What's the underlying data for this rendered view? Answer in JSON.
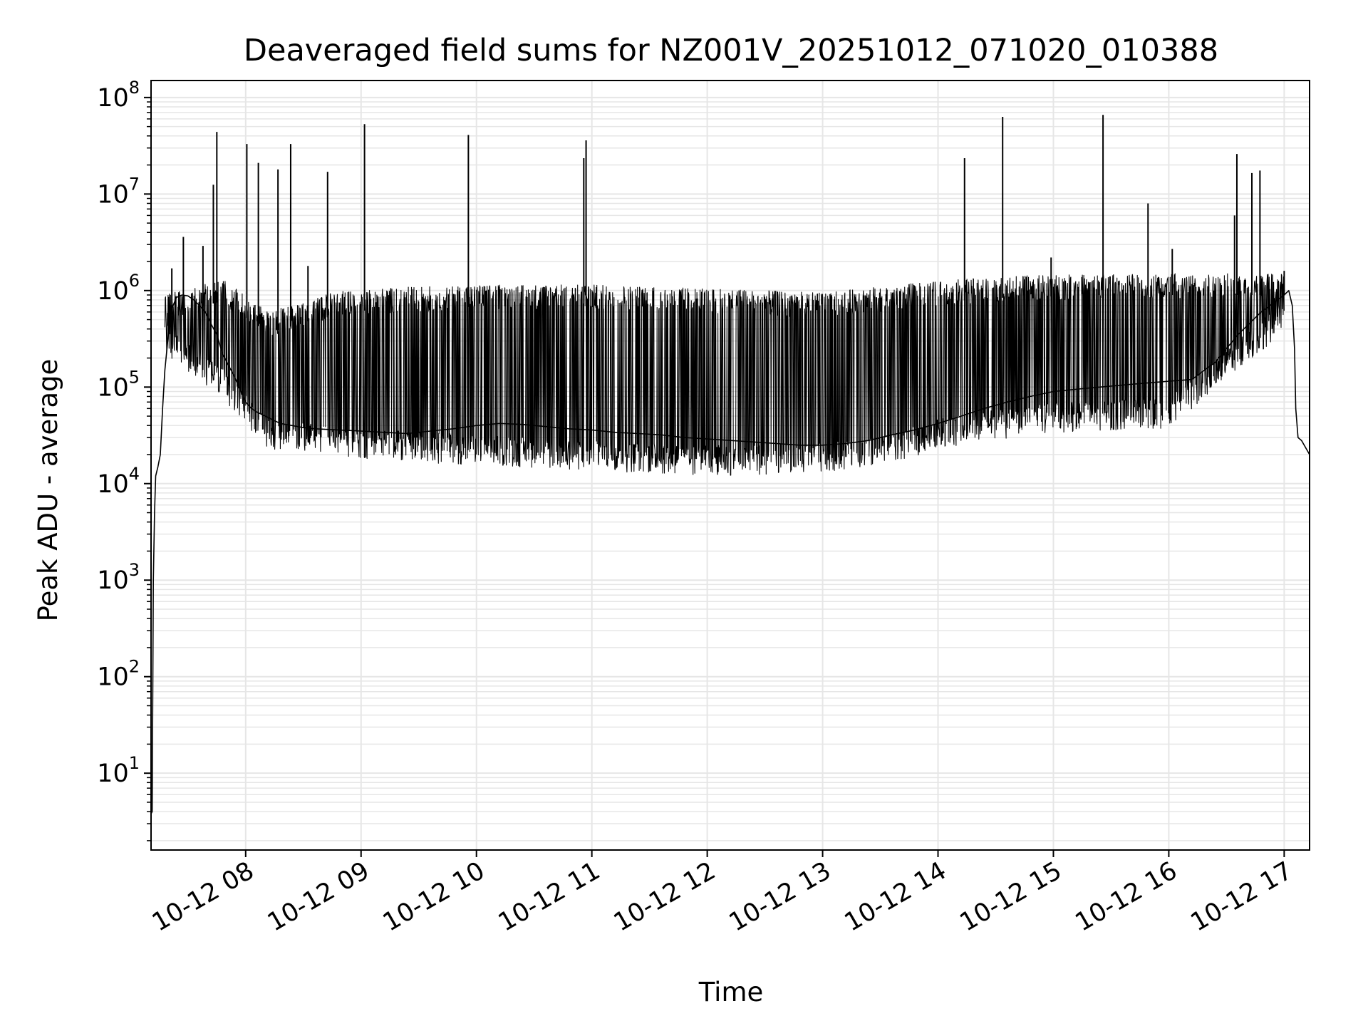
{
  "chart_data": {
    "type": "line",
    "title": "Deaveraged field sums for NZ001V_20251012_071020_010388",
    "xlabel": "Time",
    "ylabel": "Peak ADU - average",
    "yscale": "log",
    "ylim": [
      1.6,
      150000000
    ],
    "xlim": [
      7.18,
      17.22
    ],
    "grid": true,
    "line_color": "#000000",
    "grid_color": "#e6e6e6",
    "x_ticks": [
      {
        "value": 8,
        "label": "10-12 08"
      },
      {
        "value": 9,
        "label": "10-12 09"
      },
      {
        "value": 10,
        "label": "10-12 10"
      },
      {
        "value": 11,
        "label": "10-12 11"
      },
      {
        "value": 12,
        "label": "10-12 12"
      },
      {
        "value": 13,
        "label": "10-12 13"
      },
      {
        "value": 14,
        "label": "10-12 14"
      },
      {
        "value": 15,
        "label": "10-12 15"
      },
      {
        "value": 16,
        "label": "10-12 16"
      },
      {
        "value": 17,
        "label": "10-12 17"
      }
    ],
    "y_ticks": [
      {
        "value": 10,
        "base": "10",
        "exp": "1"
      },
      {
        "value": 100,
        "base": "10",
        "exp": "2"
      },
      {
        "value": 1000,
        "base": "10",
        "exp": "3"
      },
      {
        "value": 10000,
        "base": "10",
        "exp": "4"
      },
      {
        "value": 100000,
        "base": "10",
        "exp": "5"
      },
      {
        "value": 1000000,
        "base": "10",
        "exp": "6"
      },
      {
        "value": 10000000,
        "base": "10",
        "exp": "7"
      },
      {
        "value": 100000000,
        "base": "10",
        "exp": "8"
      }
    ],
    "series": [
      {
        "x": [
          7.18,
          7.19,
          7.2,
          7.21,
          7.22,
          7.24,
          7.26,
          7.28,
          7.3,
          7.33,
          7.36,
          7.4,
          7.45,
          7.5,
          7.55,
          7.6,
          7.65,
          7.7,
          7.75,
          7.8,
          7.9,
          8.0,
          8.05,
          8.1,
          8.2,
          8.3,
          8.4,
          8.5,
          8.6,
          8.8,
          9.0,
          9.2,
          9.4,
          9.6,
          9.8,
          10.0,
          10.2,
          10.4,
          10.6,
          10.8,
          11.0,
          11.2,
          11.4,
          11.6,
          11.8,
          12.0,
          12.2,
          12.4,
          12.6,
          12.8,
          13.0,
          13.2,
          13.4,
          13.6,
          13.8,
          14.0,
          14.2,
          14.4,
          14.6,
          14.8,
          15.0,
          15.2,
          15.4,
          15.6,
          15.8,
          16.0,
          16.2,
          16.4,
          16.6,
          16.8,
          17.0,
          17.04,
          17.07,
          17.09,
          17.1,
          17.12,
          17.15,
          17.2,
          17.22
        ],
        "y": [
          3.8,
          4,
          1000,
          5000,
          12000,
          15000,
          20000,
          60000,
          150000,
          350000,
          650000,
          850000,
          900000,
          880000,
          800000,
          700000,
          600000,
          450000,
          350000,
          220000,
          130000,
          70000,
          60000,
          55000,
          48000,
          42000,
          40000,
          38000,
          37000,
          36000,
          35000,
          34000,
          33000,
          35000,
          37000,
          40000,
          42000,
          41000,
          39000,
          37000,
          36000,
          34000,
          33000,
          32000,
          30000,
          29000,
          28000,
          27000,
          26000,
          25000,
          25000,
          26000,
          28000,
          32000,
          36000,
          42000,
          50000,
          60000,
          70000,
          80000,
          90000,
          95000,
          100000,
          105000,
          110000,
          115000,
          120000,
          180000,
          350000,
          600000,
          900000,
          1000000,
          700000,
          250000,
          60000,
          30000,
          28000,
          22000,
          20000
        ]
      }
    ],
    "spikes": [
      {
        "x": 7.36,
        "y": 1700000
      },
      {
        "x": 7.46,
        "y": 3600000
      },
      {
        "x": 7.63,
        "y": 2900000
      },
      {
        "x": 7.72,
        "y": 12500000
      },
      {
        "x": 7.75,
        "y": 44000000
      },
      {
        "x": 8.01,
        "y": 33000000
      },
      {
        "x": 8.11,
        "y": 21000000
      },
      {
        "x": 8.28,
        "y": 18000000
      },
      {
        "x": 8.39,
        "y": 33000000
      },
      {
        "x": 8.54,
        "y": 1800000
      },
      {
        "x": 8.71,
        "y": 17000000
      },
      {
        "x": 9.03,
        "y": 53000000
      },
      {
        "x": 9.93,
        "y": 41000000
      },
      {
        "x": 10.93,
        "y": 23500000
      },
      {
        "x": 10.95,
        "y": 36000000
      },
      {
        "x": 14.23,
        "y": 23500000
      },
      {
        "x": 14.56,
        "y": 63000000
      },
      {
        "x": 14.98,
        "y": 2200000
      },
      {
        "x": 15.43,
        "y": 66000000
      },
      {
        "x": 15.82,
        "y": 8000000
      },
      {
        "x": 16.03,
        "y": 2700000
      },
      {
        "x": 16.57,
        "y": 6000000
      },
      {
        "x": 16.59,
        "y": 26000000
      },
      {
        "x": 16.72,
        "y": 16500000
      },
      {
        "x": 16.79,
        "y": 17500000
      },
      {
        "x": 17.0,
        "y": 1600000
      }
    ],
    "oscillation_band": {
      "upper": [
        {
          "x": 7.3,
          "y": 900000
        },
        {
          "x": 7.8,
          "y": 1300000
        },
        {
          "x": 8.2,
          "y": 600000
        },
        {
          "x": 8.8,
          "y": 1000000
        },
        {
          "x": 9.5,
          "y": 1100000
        },
        {
          "x": 10.3,
          "y": 1150000
        },
        {
          "x": 11.0,
          "y": 1150000
        },
        {
          "x": 12.0,
          "y": 1050000
        },
        {
          "x": 13.0,
          "y": 950000
        },
        {
          "x": 13.5,
          "y": 1100000
        },
        {
          "x": 14.0,
          "y": 1250000
        },
        {
          "x": 14.5,
          "y": 1400000
        },
        {
          "x": 15.0,
          "y": 1450000
        },
        {
          "x": 16.0,
          "y": 1500000
        },
        {
          "x": 17.0,
          "y": 1500000
        }
      ],
      "lower": [
        {
          "x": 7.3,
          "y": 300000
        },
        {
          "x": 7.8,
          "y": 100000
        },
        {
          "x": 8.2,
          "y": 30000
        },
        {
          "x": 8.8,
          "y": 25000
        },
        {
          "x": 9.5,
          "y": 22000
        },
        {
          "x": 10.3,
          "y": 20000
        },
        {
          "x": 11.0,
          "y": 18000
        },
        {
          "x": 12.0,
          "y": 16000
        },
        {
          "x": 13.0,
          "y": 17000
        },
        {
          "x": 13.5,
          "y": 20000
        },
        {
          "x": 14.0,
          "y": 30000
        },
        {
          "x": 14.5,
          "y": 38000
        },
        {
          "x": 15.0,
          "y": 45000
        },
        {
          "x": 16.0,
          "y": 50000
        },
        {
          "x": 17.0,
          "y": 500000
        }
      ]
    }
  }
}
